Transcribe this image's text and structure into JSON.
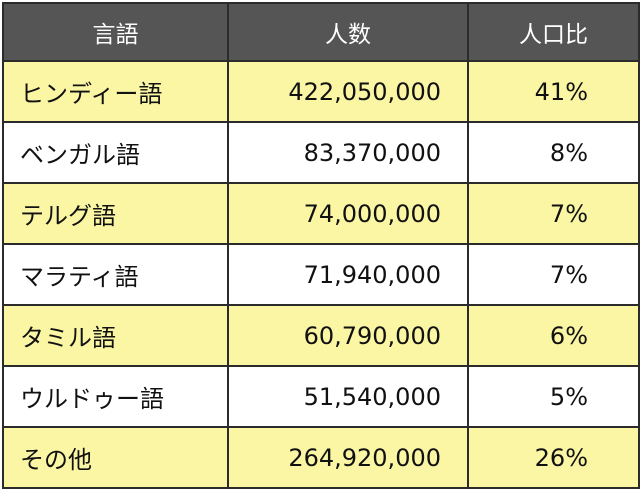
{
  "table": {
    "headers": {
      "language": "言語",
      "population": "人数",
      "ratio": "人口比"
    },
    "rows": [
      {
        "language": "ヒンディー語",
        "population": "422,050,000",
        "ratio": "41%"
      },
      {
        "language": "ベンガル語",
        "population": "83,370,000",
        "ratio": "8%"
      },
      {
        "language": "テルグ語",
        "population": "74,000,000",
        "ratio": "7%"
      },
      {
        "language": "マラティ語",
        "population": "71,940,000",
        "ratio": "7%"
      },
      {
        "language": "タミル語",
        "population": "60,790,000",
        "ratio": "6%"
      },
      {
        "language": "ウルドゥー語",
        "population": "51,540,000",
        "ratio": "5%"
      },
      {
        "language": "その他",
        "population": "264,920,000",
        "ratio": "26%"
      }
    ]
  },
  "colors": {
    "header_background": "#555555",
    "header_text": "#ffffff",
    "row_highlight": "#fbf6a4",
    "row_plain": "#ffffff",
    "border": "#2b2b2b"
  }
}
